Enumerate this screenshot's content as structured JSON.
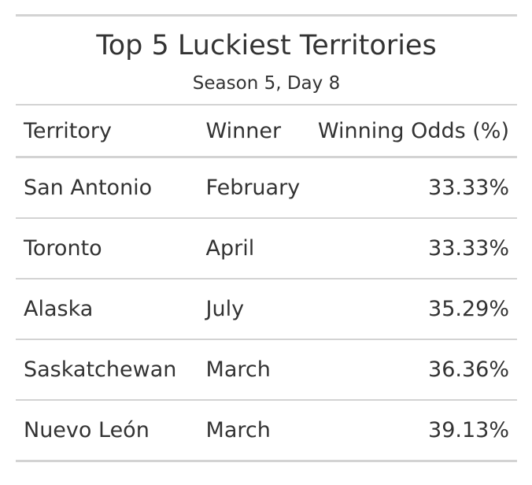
{
  "table": {
    "title": "Top 5 Luckiest Territories",
    "subtitle": "Season 5, Day 8",
    "columns": [
      "Territory",
      "Winner",
      "Winning Odds (%)"
    ],
    "rows": [
      {
        "territory": "San Antonio",
        "winner": "February",
        "odds": "33.33%"
      },
      {
        "territory": "Toronto",
        "winner": "April",
        "odds": "33.33%"
      },
      {
        "territory": "Alaska",
        "winner": "July",
        "odds": "35.29%"
      },
      {
        "territory": "Saskatchewan",
        "winner": "March",
        "odds": "36.36%"
      },
      {
        "territory": "Nuevo León",
        "winner": "March",
        "odds": "39.13%"
      }
    ]
  },
  "colors": {
    "text": "#333333",
    "rule": "#d3d3d3",
    "background": "#ffffff"
  }
}
